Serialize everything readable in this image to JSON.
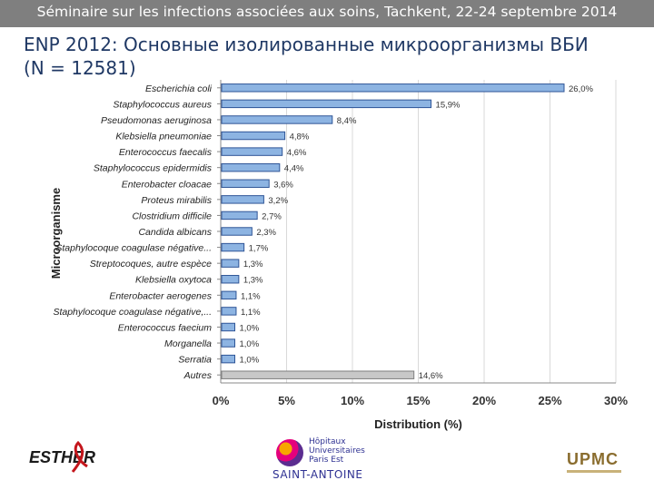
{
  "slide": {
    "header": "Séminaire sur les infections associées aux soins, Tachkent, 22-24 septembre 2014",
    "title": "ENP 2012: Основные изолированные микроорганизмы ВБИ (N = 12581)"
  },
  "chart_data": {
    "type": "bar",
    "orientation": "horizontal",
    "xlabel": "Distribution (%)",
    "ylabel": "Microorganisme",
    "xlim": [
      0,
      30
    ],
    "xticks": [
      "0%",
      "5%",
      "10%",
      "15%",
      "20%",
      "25%",
      "30%"
    ],
    "grid": true,
    "categories": [
      "Escherichia coli",
      "Staphylococcus aureus",
      "Pseudomonas aeruginosa",
      "Klebsiella pneumoniae",
      "Enterococcus faecalis",
      "Staphylococcus epidermidis",
      "Enterobacter cloacae",
      "Proteus mirabilis",
      "Clostridium difficile",
      "Candida albicans",
      "Staphylocoque coagulase négative...",
      "Streptocoques, autre espèce",
      "Klebsiella oxytoca",
      "Enterobacter aerogenes",
      "Staphylocoque coagulase négative,...",
      "Enterococcus faecium",
      "Morganella",
      "Serratia",
      "Autres"
    ],
    "values": [
      26.0,
      15.9,
      8.4,
      4.8,
      4.6,
      4.4,
      3.6,
      3.2,
      2.7,
      2.3,
      1.7,
      1.3,
      1.3,
      1.1,
      1.1,
      1.0,
      1.0,
      1.0,
      14.6
    ],
    "value_labels": [
      "26,0%",
      "15,9%",
      "8,4%",
      "4,8%",
      "4,6%",
      "4,4%",
      "3,6%",
      "3,2%",
      "2,7%",
      "2,3%",
      "1,7%",
      "1,3%",
      "1,3%",
      "1,1%",
      "1,1%",
      "1,0%",
      "1,0%",
      "1,0%",
      "14,6%"
    ],
    "colors": {
      "bar": "#8db4e2",
      "bar_edge": "#2f5597",
      "other_bar": "#c8c8c8",
      "other_edge": "#7f7f7f",
      "grid": "#d9d9d9"
    }
  },
  "logos": {
    "esther": "ESTHER",
    "hopitaux_lines": [
      "Hôpitaux",
      "Universitaires",
      "Paris Est"
    ],
    "saint_antoine": "SAINT-ANTOINE",
    "upmc": "UPMC"
  }
}
